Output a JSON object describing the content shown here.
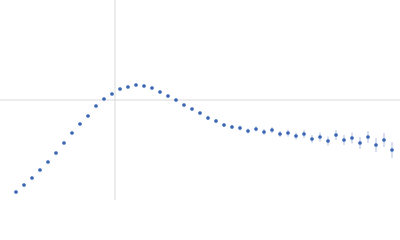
{
  "chart_data": {
    "type": "scatter",
    "x": [
      0.16,
      0.24,
      0.32,
      0.4,
      0.48,
      0.56,
      0.64,
      0.72,
      0.8,
      0.88,
      0.96,
      1.04,
      1.12,
      1.2,
      1.28,
      1.36,
      1.44,
      1.52,
      1.6,
      1.68,
      1.76,
      1.84,
      1.92,
      2.0,
      2.08,
      2.16,
      2.24,
      2.32,
      2.4,
      2.48,
      2.56,
      2.64,
      2.72,
      2.8,
      2.88,
      2.96,
      3.04,
      3.12,
      3.2,
      3.28,
      3.36,
      3.44,
      3.52,
      3.6,
      3.68,
      3.76,
      3.84,
      3.92
    ],
    "series": [
      {
        "color": "#3a66b4",
        "values": [
          0.08,
          0.15,
          0.22,
          0.3,
          0.38,
          0.47,
          0.57,
          0.67,
          0.76,
          0.84,
          0.94,
          1.01,
          1.06,
          1.11,
          1.13,
          1.15,
          1.14,
          1.12,
          1.08,
          1.04,
          1.0,
          0.95,
          0.91,
          0.87,
          0.82,
          0.79,
          0.75,
          0.73,
          0.72,
          0.69,
          0.71,
          0.68,
          0.7,
          0.66,
          0.67,
          0.64,
          0.66,
          0.61,
          0.63,
          0.59,
          0.65,
          0.6,
          0.62,
          0.57,
          0.63,
          0.55,
          0.6,
          0.5
        ],
        "errors": [
          0.005,
          0.005,
          0.005,
          0.005,
          0.005,
          0.005,
          0.005,
          0.005,
          0.005,
          0.005,
          0.01,
          0.01,
          0.01,
          0.01,
          0.01,
          0.01,
          0.01,
          0.01,
          0.01,
          0.01,
          0.01,
          0.015,
          0.015,
          0.015,
          0.02,
          0.02,
          0.02,
          0.02,
          0.025,
          0.025,
          0.025,
          0.03,
          0.03,
          0.03,
          0.035,
          0.035,
          0.04,
          0.04,
          0.045,
          0.045,
          0.05,
          0.05,
          0.055,
          0.06,
          0.06,
          0.07,
          0.07,
          0.08
        ]
      }
    ],
    "xlim": [
      0,
      4
    ],
    "ylim": [
      0,
      2
    ],
    "grid_x": [
      1.15
    ],
    "grid_y": [
      1.0
    ]
  }
}
